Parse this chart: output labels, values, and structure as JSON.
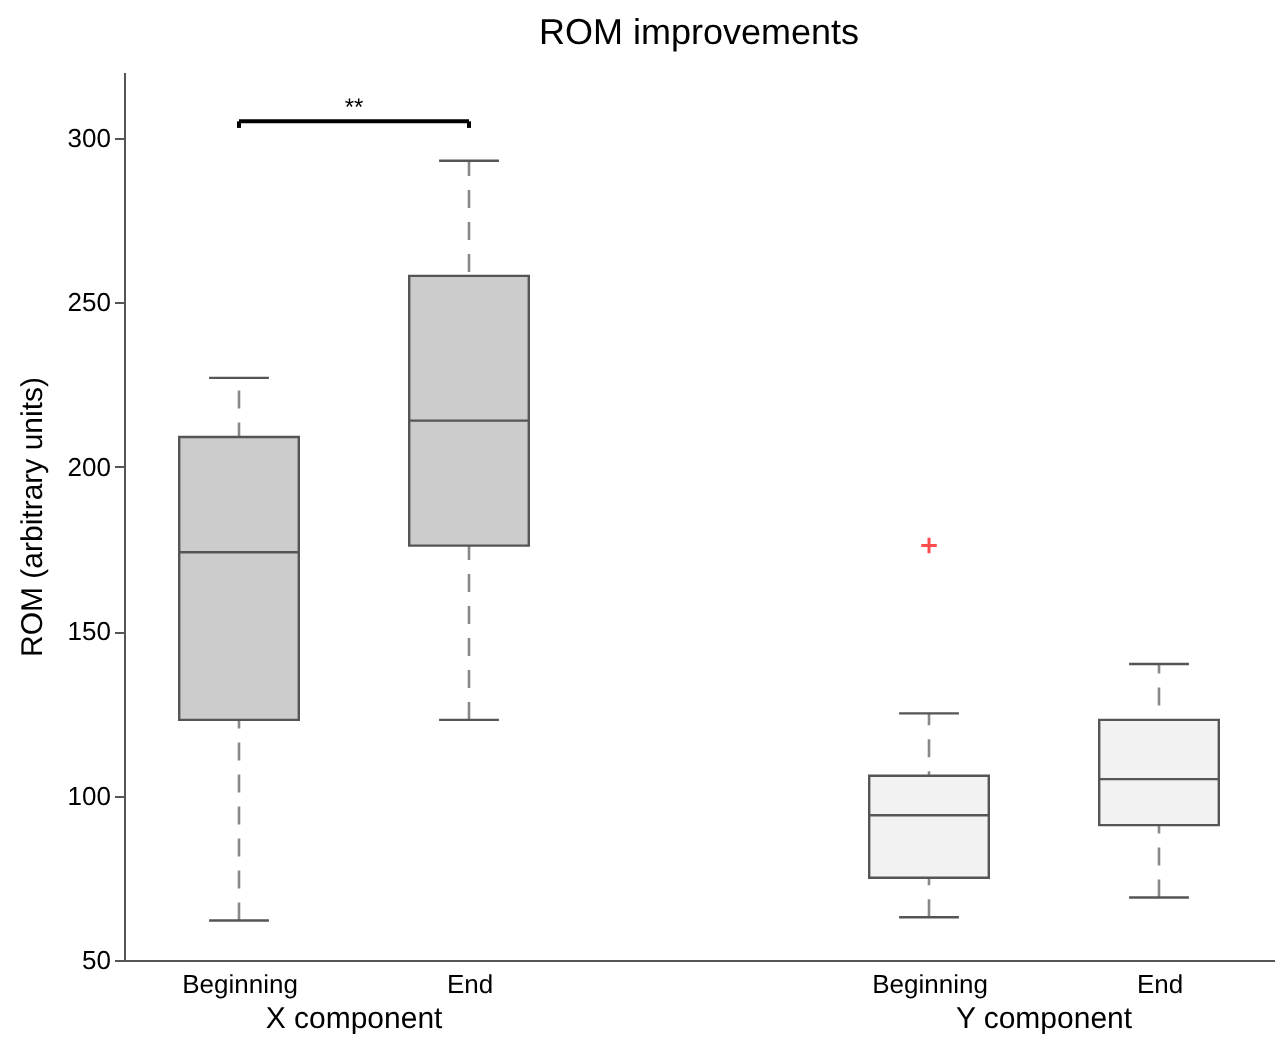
{
  "chart_data": {
    "type": "box",
    "title": "ROM improvements",
    "ylabel": "ROM (arbitrary units)",
    "categories": [
      "Beginning",
      "End",
      "Beginning",
      "End"
    ],
    "boxes": [
      {
        "low": 62,
        "q1": 123,
        "median": 174,
        "q3": 209,
        "high": 227
      },
      {
        "low": 123,
        "q1": 176,
        "median": 214,
        "q3": 258,
        "high": 293
      },
      {
        "low": 63,
        "q1": 75,
        "median": 94,
        "q3": 106,
        "high": 125,
        "outliers": [
          176
        ]
      },
      {
        "low": 69,
        "q1": 91,
        "median": 105,
        "q3": 123,
        "high": 140
      }
    ],
    "colors": [
      "#cccccc",
      "#cccccc",
      "#f2f2f2",
      "#f2f2f2"
    ],
    "ylim": [
      50,
      320
    ],
    "yticks": [
      50,
      100,
      150,
      200,
      250,
      300
    ],
    "annotations": [
      "**",
      "X component",
      "Y component"
    ]
  }
}
